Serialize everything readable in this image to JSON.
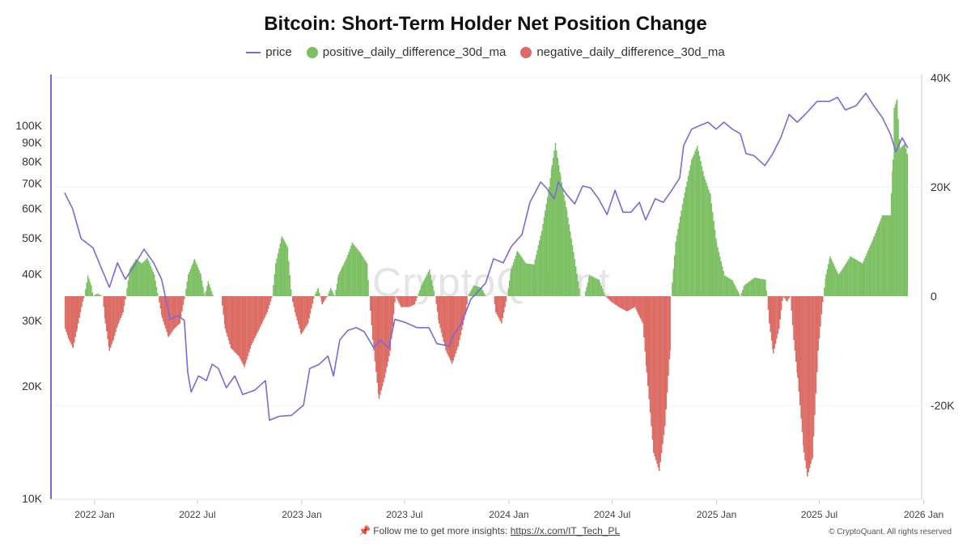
{
  "chart_data": {
    "type": "bar+line",
    "title": "Bitcoin: Short-Term Holder Net Position Change",
    "legend": [
      "price",
      "positive_daily_difference_30d_ma",
      "negative_daily_difference_30d_ma"
    ],
    "legend_placement": "top-center",
    "colors": {
      "price": "#7b68d9",
      "positive": "#7cc063",
      "negative": "#dc6b64"
    },
    "left_axis": {
      "scale": "log",
      "range": [
        10000,
        130000
      ],
      "ticks": [
        "10K",
        "20K",
        "30K",
        "40K",
        "50K",
        "60K",
        "70K",
        "80K",
        "90K",
        "100K"
      ],
      "tick_values": [
        10000,
        20000,
        30000,
        40000,
        50000,
        60000,
        70000,
        80000,
        90000,
        100000
      ]
    },
    "right_axis": {
      "scale": "linear",
      "range": [
        -37000,
        40000
      ],
      "ticks": [
        "40K",
        "20K",
        "0",
        "-20K"
      ],
      "tick_values": [
        40000,
        20000,
        0,
        -20000
      ]
    },
    "x_axis": {
      "range": [
        "2021-10-27",
        "2026-01-10"
      ],
      "ticks": [
        "2022 Jan",
        "2022 Jul",
        "2023 Jan",
        "2023 Jul",
        "2024 Jan",
        "2024 Jul",
        "2025 Jan",
        "2025 Jul",
        "2026 Jan"
      ],
      "tick_dates": [
        "2022-01-01",
        "2022-07-01",
        "2023-01-01",
        "2023-07-01",
        "2024-01-01",
        "2024-07-01",
        "2025-01-01",
        "2025-07-01",
        "2026-01-01"
      ]
    },
    "grid": "horizontal",
    "price": [
      [
        "2021-11-09",
        66000
      ],
      [
        "2021-11-23",
        59800
      ],
      [
        "2021-12-08",
        49700
      ],
      [
        "2021-12-29",
        47000
      ],
      [
        "2022-01-12",
        41700
      ],
      [
        "2022-01-27",
        36800
      ],
      [
        "2022-02-10",
        42800
      ],
      [
        "2022-02-24",
        38700
      ],
      [
        "2022-03-10",
        41700
      ],
      [
        "2022-03-29",
        46600
      ],
      [
        "2022-04-15",
        42800
      ],
      [
        "2022-04-29",
        38700
      ],
      [
        "2022-05-14",
        30200
      ],
      [
        "2022-05-28",
        30900
      ],
      [
        "2022-06-08",
        30000
      ],
      [
        "2022-06-14",
        21800
      ],
      [
        "2022-06-20",
        19300
      ],
      [
        "2022-07-03",
        21300
      ],
      [
        "2022-07-17",
        20700
      ],
      [
        "2022-07-27",
        22900
      ],
      [
        "2022-08-07",
        22300
      ],
      [
        "2022-08-21",
        19800
      ],
      [
        "2022-09-05",
        21300
      ],
      [
        "2022-09-19",
        19000
      ],
      [
        "2022-10-10",
        19500
      ],
      [
        "2022-10-29",
        20700
      ],
      [
        "2022-11-05",
        16200
      ],
      [
        "2022-11-22",
        16600
      ],
      [
        "2022-12-14",
        16700
      ],
      [
        "2023-01-04",
        17800
      ],
      [
        "2023-01-15",
        22300
      ],
      [
        "2023-02-01",
        22900
      ],
      [
        "2023-02-16",
        24100
      ],
      [
        "2023-02-26",
        21300
      ],
      [
        "2023-03-09",
        26600
      ],
      [
        "2023-03-23",
        28200
      ],
      [
        "2023-04-07",
        28700
      ],
      [
        "2023-04-21",
        28000
      ],
      [
        "2023-05-08",
        25300
      ],
      [
        "2023-05-19",
        26600
      ],
      [
        "2023-06-03",
        25300
      ],
      [
        "2023-06-14",
        30200
      ],
      [
        "2023-07-01",
        29700
      ],
      [
        "2023-07-23",
        28700
      ],
      [
        "2023-08-13",
        28700
      ],
      [
        "2023-08-27",
        26000
      ],
      [
        "2023-09-18",
        25600
      ],
      [
        "2023-09-25",
        27300
      ],
      [
        "2023-10-09",
        29400
      ],
      [
        "2023-10-26",
        34200
      ],
      [
        "2023-11-21",
        37800
      ],
      [
        "2023-12-05",
        43900
      ],
      [
        "2023-12-22",
        42800
      ],
      [
        "2024-01-05",
        47300
      ],
      [
        "2024-01-24",
        51000
      ],
      [
        "2024-02-07",
        62200
      ],
      [
        "2024-02-26",
        70500
      ],
      [
        "2024-03-07",
        68000
      ],
      [
        "2024-03-21",
        63600
      ],
      [
        "2024-03-28",
        70500
      ],
      [
        "2024-04-11",
        65500
      ],
      [
        "2024-04-26",
        61600
      ],
      [
        "2024-05-10",
        68800
      ],
      [
        "2024-05-24",
        68000
      ],
      [
        "2024-06-07",
        63600
      ],
      [
        "2024-06-22",
        57700
      ],
      [
        "2024-07-06",
        67000
      ],
      [
        "2024-07-20",
        58500
      ],
      [
        "2024-08-03",
        58500
      ],
      [
        "2024-08-18",
        62200
      ],
      [
        "2024-08-29",
        55800
      ],
      [
        "2024-09-15",
        63600
      ],
      [
        "2024-09-29",
        62200
      ],
      [
        "2024-10-14",
        67000
      ],
      [
        "2024-10-28",
        72300
      ],
      [
        "2024-11-04",
        88300
      ],
      [
        "2024-11-18",
        97700
      ],
      [
        "2024-12-03",
        100000
      ],
      [
        "2024-12-17",
        102000
      ],
      [
        "2024-12-31",
        97700
      ],
      [
        "2025-01-14",
        102000
      ],
      [
        "2025-01-29",
        97700
      ],
      [
        "2025-02-12",
        95000
      ],
      [
        "2025-02-22",
        84000
      ],
      [
        "2025-03-08",
        83000
      ],
      [
        "2025-03-27",
        78000
      ],
      [
        "2025-04-10",
        84000
      ],
      [
        "2025-04-24",
        92600
      ],
      [
        "2025-05-09",
        107000
      ],
      [
        "2025-05-23",
        102000
      ],
      [
        "2025-06-06",
        107000
      ],
      [
        "2025-06-27",
        116000
      ],
      [
        "2025-07-19",
        116000
      ],
      [
        "2025-08-02",
        119000
      ],
      [
        "2025-08-16",
        110000
      ],
      [
        "2025-09-04",
        113000
      ],
      [
        "2025-09-21",
        122000
      ],
      [
        "2025-10-05",
        113000
      ],
      [
        "2025-10-20",
        105000
      ],
      [
        "2025-11-03",
        95000
      ],
      [
        "2025-11-13",
        85000
      ],
      [
        "2025-11-24",
        92600
      ],
      [
        "2025-12-04",
        87000
      ]
    ],
    "net_position_change": [
      [
        "2021-11-09",
        -6000
      ],
      [
        "2021-11-16",
        -8000
      ],
      [
        "2021-11-23",
        -9500
      ],
      [
        "2021-11-30",
        -6000
      ],
      [
        "2021-12-10",
        -1000
      ],
      [
        "2021-12-13",
        0
      ],
      [
        "2021-12-19",
        3800
      ],
      [
        "2021-12-25",
        2000
      ],
      [
        "2021-12-28",
        0
      ],
      [
        "2022-01-05",
        500
      ],
      [
        "2022-01-14",
        0
      ],
      [
        "2022-01-19",
        -5000
      ],
      [
        "2022-01-26",
        -10000
      ],
      [
        "2022-02-02",
        -8000
      ],
      [
        "2022-02-09",
        -5500
      ],
      [
        "2022-02-19",
        -3000
      ],
      [
        "2022-02-24",
        0
      ],
      [
        "2022-03-03",
        5000
      ],
      [
        "2022-03-14",
        6800
      ],
      [
        "2022-03-24",
        6000
      ],
      [
        "2022-04-03",
        7000
      ],
      [
        "2022-04-15",
        4000
      ],
      [
        "2022-04-22",
        0
      ],
      [
        "2022-04-29",
        -4000
      ],
      [
        "2022-05-10",
        -7500
      ],
      [
        "2022-05-20",
        -6000
      ],
      [
        "2022-05-30",
        -5000
      ],
      [
        "2022-06-08",
        0
      ],
      [
        "2022-06-14",
        4000
      ],
      [
        "2022-06-25",
        6800
      ],
      [
        "2022-07-06",
        4000
      ],
      [
        "2022-07-13",
        0
      ],
      [
        "2022-07-19",
        2800
      ],
      [
        "2022-07-28",
        0
      ],
      [
        "2022-08-11",
        0
      ],
      [
        "2022-08-18",
        -6000
      ],
      [
        "2022-08-28",
        -9500
      ],
      [
        "2022-09-11",
        -11000
      ],
      [
        "2022-09-21",
        -13000
      ],
      [
        "2022-10-03",
        -9000
      ],
      [
        "2022-10-17",
        -6000
      ],
      [
        "2022-10-31",
        -3000
      ],
      [
        "2022-11-09",
        0
      ],
      [
        "2022-11-15",
        6000
      ],
      [
        "2022-11-26",
        11000
      ],
      [
        "2022-12-06",
        9000
      ],
      [
        "2022-12-13",
        0
      ],
      [
        "2022-12-19",
        -3000
      ],
      [
        "2022-12-30",
        -7000
      ],
      [
        "2023-01-11",
        -5000
      ],
      [
        "2023-01-22",
        0
      ],
      [
        "2023-01-29",
        1500
      ],
      [
        "2023-02-05",
        -1500
      ],
      [
        "2023-02-14",
        0
      ],
      [
        "2023-02-20",
        1500
      ],
      [
        "2023-02-27",
        0
      ],
      [
        "2023-03-06",
        4000
      ],
      [
        "2023-03-20",
        7000
      ],
      [
        "2023-03-30",
        9800
      ],
      [
        "2023-04-13",
        8000
      ],
      [
        "2023-04-25",
        6000
      ],
      [
        "2023-04-29",
        0
      ],
      [
        "2023-05-05",
        -8000
      ],
      [
        "2023-05-16",
        -18800
      ],
      [
        "2023-05-26",
        -15000
      ],
      [
        "2023-06-05",
        -10000
      ],
      [
        "2023-06-14",
        0
      ],
      [
        "2023-06-24",
        -2000
      ],
      [
        "2023-07-08",
        -2000
      ],
      [
        "2023-07-18",
        -1500
      ],
      [
        "2023-07-23",
        0
      ],
      [
        "2023-07-30",
        2000
      ],
      [
        "2023-08-13",
        4900
      ],
      [
        "2023-08-23",
        0
      ],
      [
        "2023-08-30",
        -5000
      ],
      [
        "2023-09-11",
        -10000
      ],
      [
        "2023-09-22",
        -12400
      ],
      [
        "2023-10-03",
        -9000
      ],
      [
        "2023-10-16",
        -3000
      ],
      [
        "2023-10-20",
        0
      ],
      [
        "2023-10-30",
        2000
      ],
      [
        "2023-11-13",
        1500
      ],
      [
        "2023-11-20",
        0
      ],
      [
        "2023-12-04",
        0
      ],
      [
        "2023-12-08",
        -3000
      ],
      [
        "2023-12-18",
        -5000
      ],
      [
        "2023-12-28",
        0
      ],
      [
        "2024-01-04",
        5000
      ],
      [
        "2024-01-15",
        8300
      ],
      [
        "2024-01-30",
        6000
      ],
      [
        "2024-02-13",
        5800
      ],
      [
        "2024-02-27",
        12000
      ],
      [
        "2024-03-11",
        20000
      ],
      [
        "2024-03-16",
        24000
      ],
      [
        "2024-03-22",
        28000
      ],
      [
        "2024-03-31",
        22000
      ],
      [
        "2024-04-11",
        15700
      ],
      [
        "2024-04-25",
        6800
      ],
      [
        "2024-05-05",
        0
      ],
      [
        "2024-05-12",
        0
      ],
      [
        "2024-05-21",
        3800
      ],
      [
        "2024-06-07",
        3000
      ],
      [
        "2024-06-18",
        0
      ],
      [
        "2024-06-28",
        -1000
      ],
      [
        "2024-07-12",
        -2000
      ],
      [
        "2024-07-26",
        -2800
      ],
      [
        "2024-08-09",
        -2000
      ],
      [
        "2024-08-23",
        -5000
      ],
      [
        "2024-08-30",
        -14000
      ],
      [
        "2024-09-11",
        -28700
      ],
      [
        "2024-09-21",
        -32000
      ],
      [
        "2024-10-01",
        -23800
      ],
      [
        "2024-10-10",
        -10000
      ],
      [
        "2024-10-12",
        0
      ],
      [
        "2024-10-20",
        10000
      ],
      [
        "2024-11-03",
        18000
      ],
      [
        "2024-11-17",
        25000
      ],
      [
        "2024-11-27",
        27500
      ],
      [
        "2024-12-09",
        22000
      ],
      [
        "2024-12-20",
        18600
      ],
      [
        "2024-12-31",
        9800
      ],
      [
        "2025-01-14",
        3800
      ],
      [
        "2025-01-28",
        2900
      ],
      [
        "2025-02-11",
        0
      ],
      [
        "2025-02-18",
        2000
      ],
      [
        "2025-03-08",
        3400
      ],
      [
        "2025-03-27",
        3000
      ],
      [
        "2025-03-30",
        0
      ],
      [
        "2025-04-03",
        -5000
      ],
      [
        "2025-04-10",
        -10500
      ],
      [
        "2025-04-20",
        -6000
      ],
      [
        "2025-04-27",
        0
      ],
      [
        "2025-05-04",
        -1000
      ],
      [
        "2025-05-10",
        0
      ],
      [
        "2025-05-16",
        -8000
      ],
      [
        "2025-05-23",
        -15000
      ],
      [
        "2025-06-03",
        -28600
      ],
      [
        "2025-06-09",
        -33000
      ],
      [
        "2025-06-18",
        -29600
      ],
      [
        "2025-06-28",
        -10000
      ],
      [
        "2025-07-07",
        0
      ],
      [
        "2025-07-12",
        4000
      ],
      [
        "2025-07-19",
        7300
      ],
      [
        "2025-08-03",
        3900
      ],
      [
        "2025-08-24",
        7300
      ],
      [
        "2025-09-14",
        6000
      ],
      [
        "2025-10-05",
        11000
      ],
      [
        "2025-10-19",
        14800
      ],
      [
        "2025-11-02",
        14800
      ],
      [
        "2025-11-07",
        25000
      ],
      [
        "2025-11-09",
        34500
      ],
      [
        "2025-11-14",
        36000
      ],
      [
        "2025-11-19",
        27000
      ],
      [
        "2025-11-28",
        28000
      ],
      [
        "2025-12-03",
        25600
      ]
    ]
  },
  "watermark": "CryptoQuant",
  "footer": {
    "text": "Follow me to get more insights:",
    "link": "https://x.com/IT_Tech_PL",
    "copyright": "© CryptoQuant. All rights reserved"
  }
}
